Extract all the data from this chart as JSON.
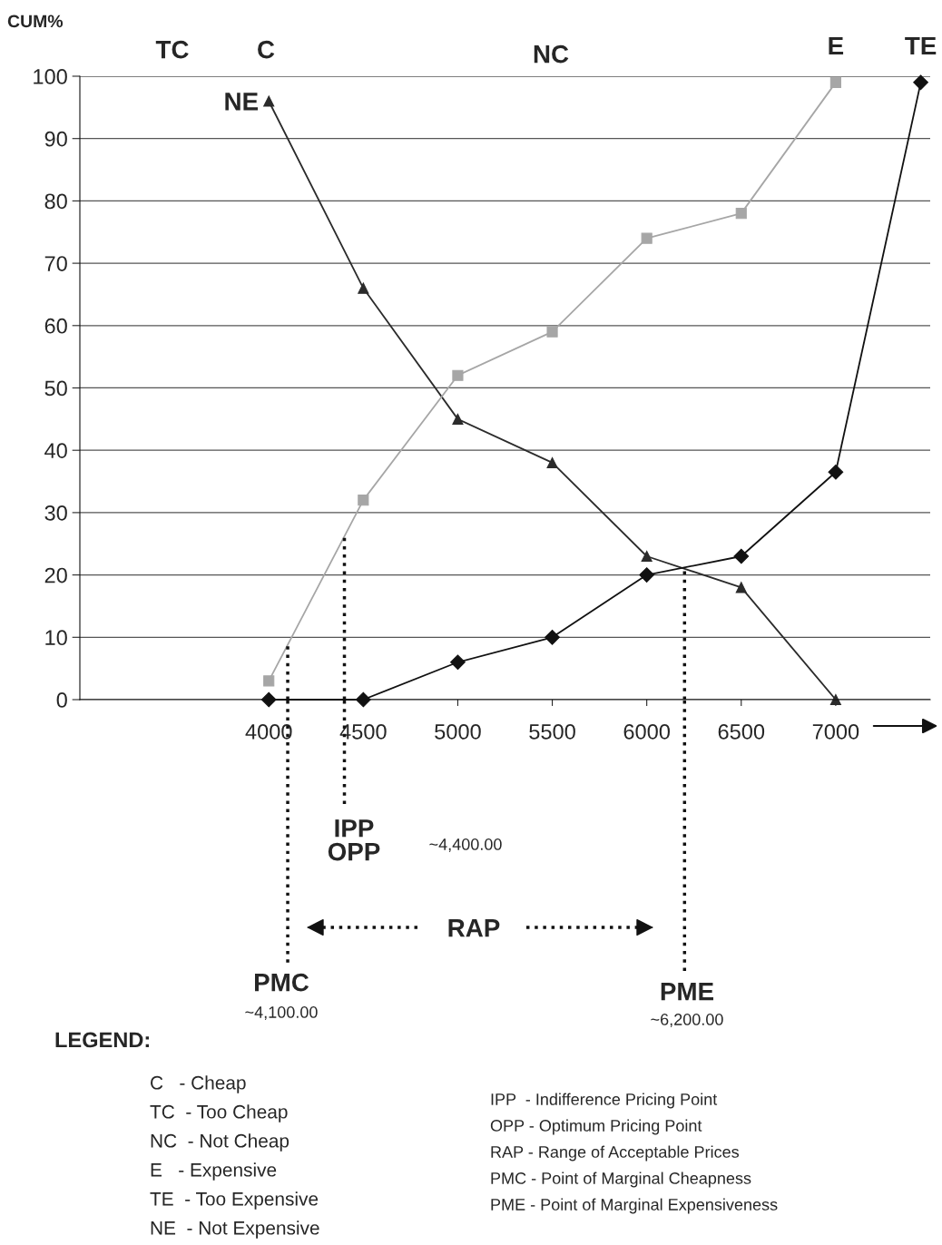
{
  "chart_data": {
    "type": "line",
    "ylabel": "CUM%",
    "x": [
      4000,
      4500,
      5000,
      5500,
      6000,
      6500,
      7000
    ],
    "xlim": [
      3000,
      7500
    ],
    "xticks": [
      4000,
      4500,
      5000,
      5500,
      6000,
      6500,
      7000
    ],
    "ylim": [
      0,
      100
    ],
    "yticks": [
      0,
      10,
      20,
      30,
      40,
      50,
      60,
      70,
      80,
      90,
      100
    ],
    "grid": "y",
    "legend": false,
    "series": [
      {
        "name": "NE",
        "color": "#2b2b2b",
        "marker": "triangle",
        "values": [
          96,
          66,
          45,
          38,
          23,
          18,
          0
        ]
      },
      {
        "name": "E",
        "color": "#a6a6a6",
        "marker": "square",
        "values": [
          3,
          32,
          52,
          59,
          74,
          78,
          99
        ]
      },
      {
        "name": "TE",
        "color": "#111111",
        "marker": "diamond",
        "x": [
          4000,
          4500,
          5000,
          5500,
          6000,
          6500,
          7000,
          7450
        ],
        "values": [
          0,
          0,
          6,
          10,
          20,
          23,
          36.5,
          99
        ]
      }
    ],
    "ref_lines": [
      {
        "axis": "x",
        "value": 4400,
        "label": "IPP\nOPP",
        "line_style": "dotted",
        "color": "#111111"
      },
      {
        "axis": "x",
        "value": 4100,
        "label": "PMC",
        "line_style": "dotted",
        "color": "#111111"
      },
      {
        "axis": "x",
        "value": 6200,
        "label": "PME",
        "line_style": "dotted",
        "color": "#111111"
      }
    ],
    "annotations": [
      "TC",
      "C",
      "NC",
      "~4,400.00",
      "~4,100.00",
      "~6,200.00",
      "RAP",
      "LEGEND:",
      "C   - Cheap",
      "TC  - Too Cheap",
      "NC  - Not Cheap",
      "E   - Expensive",
      "TE  - Too Expensive",
      "NE  - Not Expensive",
      "IPP  - Indifference Pricing Point",
      "OPP - Optimum Pricing Point",
      "RAP - Range of Acceptable Prices",
      "PMC - Point of Marginal Cheapness",
      "PME - Point of Marginal Expensiveness"
    ]
  }
}
